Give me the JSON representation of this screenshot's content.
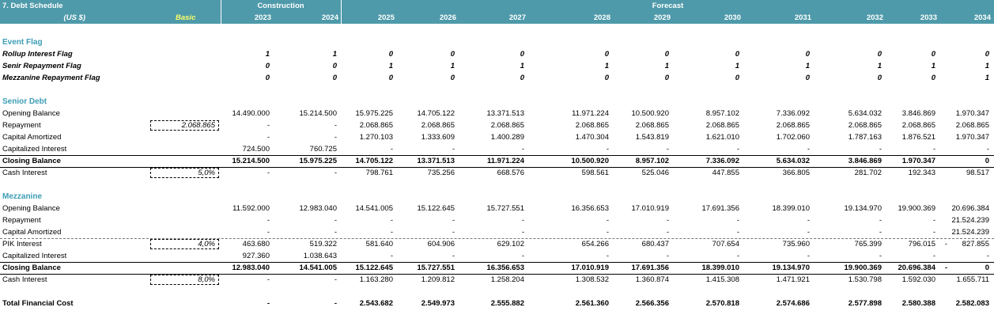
{
  "header": {
    "title": "7. Debt Schedule",
    "currency": "(US $)",
    "basic": "Basic",
    "construction": "Construction",
    "forecast": "Forecast",
    "years": [
      "2023",
      "2024",
      "2025",
      "2026",
      "2027",
      "2028",
      "2029",
      "2030",
      "2031",
      "2032",
      "2033",
      "2034"
    ]
  },
  "colors": {
    "header_bg": "#4e9aaa",
    "section_title": "#3c9db5",
    "basic_label": "#ffff66"
  },
  "rows": [
    {
      "type": "section",
      "label": "Event Flag"
    },
    {
      "type": "flag",
      "label": "Rollup Interest Flag",
      "values": [
        "1",
        "1",
        "0",
        "0",
        "0",
        "0",
        "0",
        "0",
        "0",
        "0",
        "0",
        "0"
      ]
    },
    {
      "type": "flag",
      "label": "Senir Repayment Flag",
      "values": [
        "0",
        "0",
        "1",
        "1",
        "1",
        "1",
        "1",
        "1",
        "1",
        "1",
        "1",
        "1"
      ]
    },
    {
      "type": "flag",
      "label": "Mezzanine Repayment Flag",
      "values": [
        "0",
        "0",
        "0",
        "0",
        "0",
        "0",
        "0",
        "0",
        "0",
        "0",
        "0",
        "1"
      ]
    },
    {
      "type": "section",
      "label": "Senior Debt"
    },
    {
      "type": "normal",
      "label": "Opening Balance",
      "values": [
        "14.490.000",
        "15.214.500",
        "15.975.225",
        "14.705.122",
        "13.371.513",
        "11.971.224",
        "10.500.920",
        "8.957.102",
        "7.336.092",
        "5.634.032",
        "3.846.869",
        "1.970.347"
      ]
    },
    {
      "type": "normal",
      "label": "Repayment",
      "input": "2.068.865",
      "values": [
        "-",
        "-",
        "2.068.865",
        "2.068.865",
        "2.068.865",
        "2.068.865",
        "2.068.865",
        "2.068.865",
        "2.068.865",
        "2.068.865",
        "2.068.865",
        "2.068.865"
      ]
    },
    {
      "type": "normal",
      "label": "Capital Amortized",
      "values": [
        "-",
        "-",
        "1.270.103",
        "1.333.609",
        "1.400.289",
        "1.470.304",
        "1.543.819",
        "1.621.010",
        "1.702.060",
        "1.787.163",
        "1.876.521",
        "1.970.347"
      ]
    },
    {
      "type": "normal",
      "label": "Capitalized Interest",
      "values": [
        "724.500",
        "760.725",
        "-",
        "-",
        "-",
        "-",
        "-",
        "-",
        "-",
        "-",
        "-",
        "-"
      ]
    },
    {
      "type": "total",
      "label": "Closing Balance",
      "values": [
        "15.214.500",
        "15.975.225",
        "14.705.122",
        "13.371.513",
        "11.971.224",
        "10.500.920",
        "8.957.102",
        "7.336.092",
        "5.634.032",
        "3.846.869",
        "1.970.347",
        "0"
      ]
    },
    {
      "type": "normal",
      "label": "Cash Interest",
      "input": "5,0%",
      "values": [
        "-",
        "-",
        "798.761",
        "735.256",
        "668.576",
        "598.561",
        "525.046",
        "447.855",
        "366.805",
        "281.702",
        "192.343",
        "98.517"
      ]
    },
    {
      "type": "section",
      "label": "Mezzanine"
    },
    {
      "type": "normal",
      "label": "Opening Balance",
      "values": [
        "11.592.000",
        "12.983.040",
        "14.541.005",
        "15.122.645",
        "15.727.551",
        "16.356.653",
        "17.010.919",
        "17.691.356",
        "18.399.010",
        "19.134.970",
        "19.900.369",
        "20.696.384"
      ]
    },
    {
      "type": "normal",
      "label": "Repayment",
      "values": [
        "-",
        "-",
        "-",
        "-",
        "-",
        "-",
        "-",
        "-",
        "-",
        "-",
        "-",
        "21.524.239"
      ]
    },
    {
      "type": "normal",
      "label": "Capital Amortized",
      "values": [
        "-",
        "-",
        "-",
        "-",
        "-",
        "-",
        "-",
        "-",
        "-",
        "-",
        "-",
        "21.524.239"
      ]
    },
    {
      "type": "normal",
      "label": "PIK Interest",
      "input": "4,0%",
      "values": [
        "463.680",
        "519.322",
        "581.640",
        "604.906",
        "629.102",
        "654.266",
        "680.437",
        "707.654",
        "735.960",
        "765.399",
        "796.015",
        "827.855"
      ],
      "extra": "-"
    },
    {
      "type": "normal",
      "label": "Capitalized Interest",
      "values": [
        "927.360",
        "1.038.643",
        "-",
        "-",
        "-",
        "-",
        "-",
        "-",
        "-",
        "-",
        "-",
        "-"
      ]
    },
    {
      "type": "total",
      "label": "Closing Balance",
      "values": [
        "12.983.040",
        "14.541.005",
        "15.122.645",
        "15.727.551",
        "16.356.653",
        "17.010.919",
        "17.691.356",
        "18.399.010",
        "19.134.970",
        "19.900.369",
        "20.696.384",
        "0"
      ],
      "extra": "-"
    },
    {
      "type": "normal",
      "label": "Cash Interest",
      "input": "8,0%",
      "values": [
        "-",
        "-",
        "1.163.280",
        "1.209.812",
        "1.258.204",
        "1.308.532",
        "1.360.874",
        "1.415.308",
        "1.471.921",
        "1.530.798",
        "1.592.030",
        "1.655.711"
      ]
    },
    {
      "type": "grand",
      "label": "Total Financial Cost",
      "values": [
        "-",
        "-",
        "2.543.682",
        "2.549.973",
        "2.555.882",
        "2.561.360",
        "2.566.356",
        "2.570.818",
        "2.574.686",
        "2.577.898",
        "2.580.388",
        "2.582.083"
      ]
    }
  ]
}
